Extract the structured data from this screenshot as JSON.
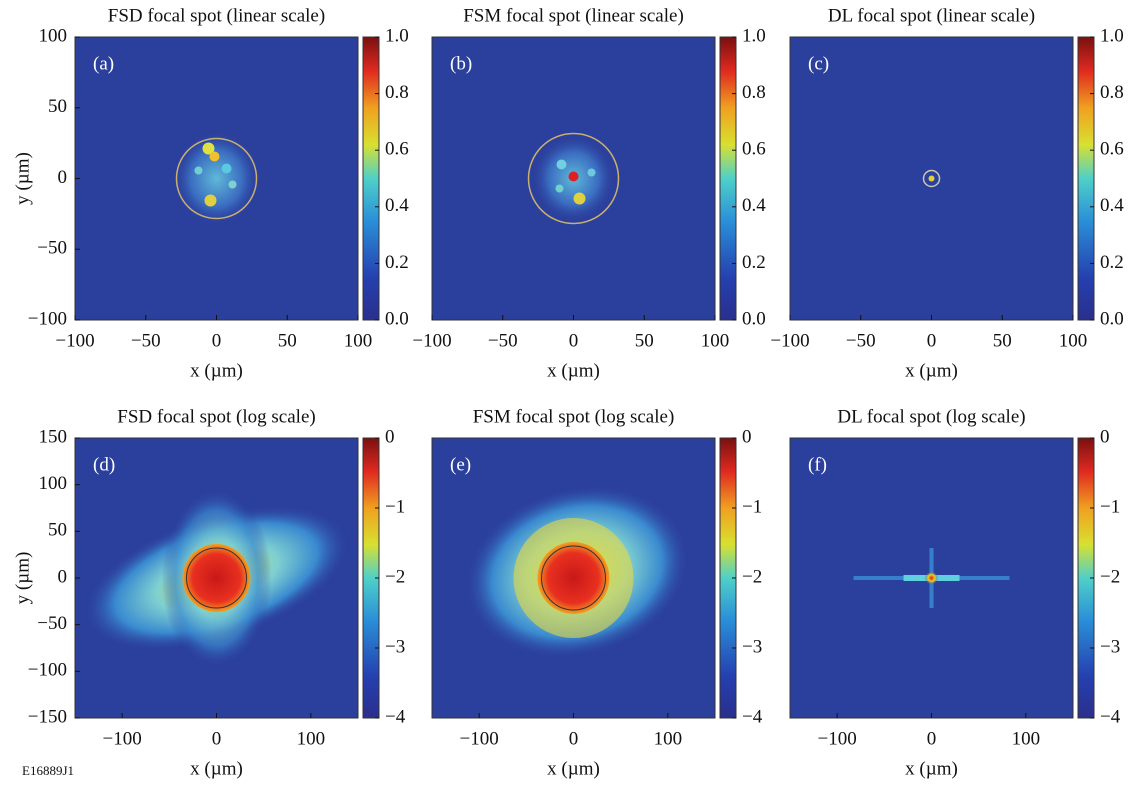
{
  "chart_data": [
    {
      "type": "heatmap",
      "title": "FSD focal spot (linear scale)",
      "panel_label": "(a)",
      "x_label": "x (µm)",
      "y_label": "y (µm)",
      "xlim": [
        -100,
        100
      ],
      "xticks": [
        {
          "value": -100,
          "label": "−100"
        },
        {
          "value": -50,
          "label": "−50"
        },
        0,
        50,
        100
      ],
      "ylim": [
        -100,
        100
      ],
      "yticks": [
        {
          "value": -100,
          "label": "−100"
        },
        {
          "value": -50,
          "label": "−50"
        },
        0,
        50,
        100
      ],
      "colorbar_lim": [
        0,
        1
      ],
      "colorbar_ticks": [
        {
          "value": 0,
          "label": "0.0"
        },
        0.2,
        0.4,
        0.6,
        0.8,
        {
          "value": 1,
          "label": "1.0"
        }
      ]
    },
    {
      "type": "heatmap",
      "title": "FSM focal spot (linear scale)",
      "panel_label": "(b)",
      "x_label": "x (µm)",
      "xlim": [
        -100,
        100
      ],
      "xticks": [
        {
          "value": -100,
          "label": "−100"
        },
        {
          "value": -50,
          "label": "−50"
        },
        0,
        50,
        100
      ],
      "colorbar_lim": [
        0,
        1
      ],
      "colorbar_ticks": [
        {
          "value": 0,
          "label": "0.0"
        },
        0.2,
        0.4,
        0.6,
        0.8,
        {
          "value": 1,
          "label": "1.0"
        }
      ]
    },
    {
      "type": "heatmap",
      "title": "DL focal spot (linear scale)",
      "panel_label": "(c)",
      "x_label": "x (µm)",
      "xlim": [
        -100,
        100
      ],
      "xticks": [
        {
          "value": -100,
          "label": "−100"
        },
        {
          "value": -50,
          "label": "−50"
        },
        0,
        50,
        100
      ],
      "colorbar_lim": [
        0,
        1
      ],
      "colorbar_ticks": [
        {
          "value": 0,
          "label": "0.0"
        },
        0.2,
        0.4,
        0.6,
        0.8,
        {
          "value": 1,
          "label": "1.0"
        }
      ]
    },
    {
      "type": "heatmap",
      "title": "FSD focal spot (log scale)",
      "panel_label": "(d)",
      "x_label": "x (µm)",
      "y_label": "y (µm)",
      "xlim": [
        -150,
        150
      ],
      "xticks": [
        {
          "value": -100,
          "label": "−100"
        },
        0,
        100
      ],
      "ylim": [
        -150,
        150
      ],
      "yticks": [
        {
          "value": -150,
          "label": "−150"
        },
        {
          "value": -100,
          "label": "−100"
        },
        {
          "value": -50,
          "label": "−50"
        },
        0,
        50,
        100,
        150
      ],
      "colorbar_lim": [
        -4,
        0
      ],
      "colorbar_ticks": [
        {
          "value": -4,
          "label": "−4"
        },
        {
          "value": -3,
          "label": "−3"
        },
        {
          "value": -2,
          "label": "−2"
        },
        {
          "value": -1,
          "label": "−1"
        },
        0
      ]
    },
    {
      "type": "heatmap",
      "title": "FSM focal spot (log scale)",
      "panel_label": "(e)",
      "x_label": "x (µm)",
      "xlim": [
        -150,
        150
      ],
      "xticks": [
        {
          "value": -100,
          "label": "−100"
        },
        0,
        100
      ],
      "colorbar_lim": [
        -4,
        0
      ],
      "colorbar_ticks": [
        {
          "value": -4,
          "label": "−4"
        },
        {
          "value": -3,
          "label": "−3"
        },
        {
          "value": -2,
          "label": "−2"
        },
        {
          "value": -1,
          "label": "−1"
        },
        0
      ]
    },
    {
      "type": "heatmap",
      "title": "DL focal spot (log scale)",
      "panel_label": "(f)",
      "x_label": "x (µm)",
      "xlim": [
        -150,
        150
      ],
      "xticks": [
        {
          "value": -100,
          "label": "−100"
        },
        0,
        100
      ],
      "colorbar_lim": [
        -4,
        0
      ],
      "colorbar_ticks": [
        {
          "value": -4,
          "label": "−4"
        },
        {
          "value": -3,
          "label": "−3"
        },
        {
          "value": -2,
          "label": "−2"
        },
        {
          "value": -1,
          "label": "−1"
        },
        0
      ]
    }
  ],
  "figure_id": "E16889J1"
}
